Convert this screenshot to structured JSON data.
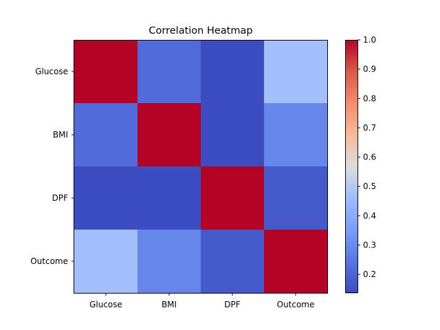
{
  "chart_data": {
    "type": "heatmap",
    "title": "Correlation Heatmap",
    "xlabel": "",
    "ylabel": "",
    "x_categories": [
      "Glucose",
      "BMI",
      "DPF",
      "Outcome"
    ],
    "y_categories": [
      "Glucose",
      "BMI",
      "DPF",
      "Outcome"
    ],
    "values": [
      [
        1.0,
        0.22,
        0.14,
        0.47
      ],
      [
        0.22,
        1.0,
        0.14,
        0.29
      ],
      [
        0.14,
        0.14,
        1.0,
        0.17
      ],
      [
        0.47,
        0.29,
        0.17,
        1.0
      ]
    ],
    "colormap": "coolwarm",
    "color_range": [
      0.137,
      1.0
    ],
    "colorbar_ticks": [
      0.2,
      0.3,
      0.4,
      0.5,
      0.6,
      0.7,
      0.8,
      0.9,
      1.0
    ],
    "colorbar_tick_labels": [
      "0.2",
      "0.3",
      "0.4",
      "0.5",
      "0.6",
      "0.7",
      "0.8",
      "0.9",
      "1.0"
    ],
    "grid": false,
    "legend": "colorbar-right"
  }
}
